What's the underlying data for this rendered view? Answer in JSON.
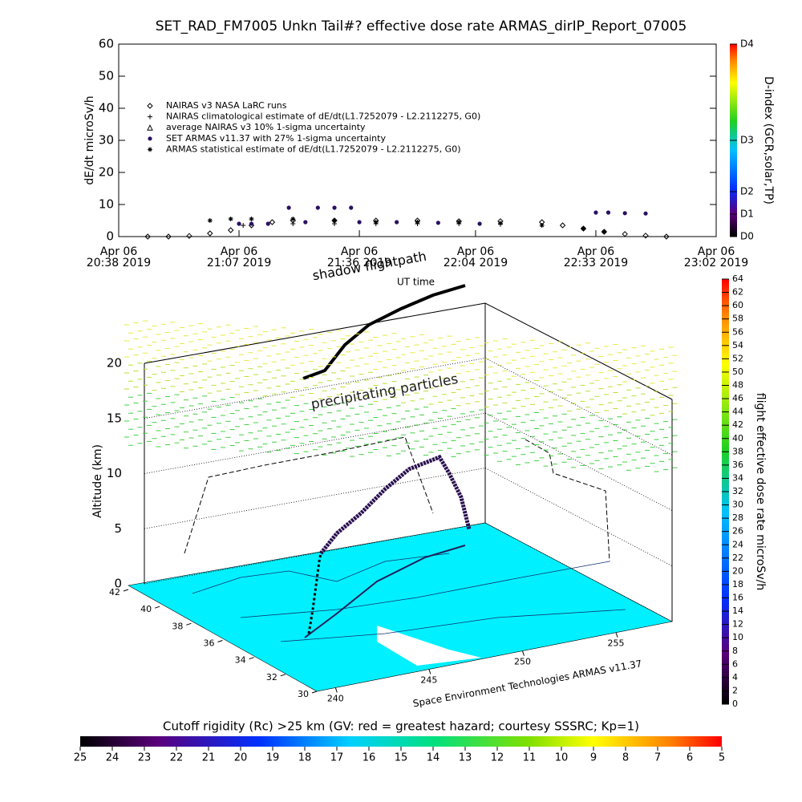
{
  "chart_data": [
    {
      "type": "line",
      "title": "SET_RAD_FM7005  Unkn Tail#? effective dose rate ARMAS_dirIP_Report_07005",
      "ylabel": "dE/dt microSv/h",
      "xlim": [
        "20:38",
        "23:02"
      ],
      "xticks": [
        {
          "value": "20:38",
          "label": [
            "Apr 06",
            "20:38 2019"
          ]
        },
        {
          "value": "21:07",
          "label": [
            "Apr 06",
            "21:07 2019"
          ]
        },
        {
          "value": "21:36",
          "label": [
            "Apr 06",
            "21:36 2019"
          ]
        },
        {
          "value": "22:04",
          "label": [
            "Apr 06",
            "22:04 2019"
          ]
        },
        {
          "value": "22:33",
          "label": [
            "Apr 06",
            "22:33 2019"
          ]
        },
        {
          "value": "23:02",
          "label": [
            "Apr 06",
            "23:02 2019"
          ]
        }
      ],
      "ylim": [
        0,
        60
      ],
      "yticks": [
        0,
        10,
        20,
        30,
        40,
        50,
        60
      ],
      "y2label": "D-index (GCR,solar,TP)",
      "y2lim": [
        0,
        60
      ],
      "y2ticks": [
        {
          "value": 0,
          "label": "D0"
        },
        {
          "value": 7,
          "label": "D1"
        },
        {
          "value": 14,
          "label": "D2"
        },
        {
          "value": 30,
          "label": "D3"
        },
        {
          "value": 60,
          "label": "D4"
        }
      ],
      "series": [
        {
          "name": "NAIRAS v3 NASA LaRC runs",
          "marker": "diamond",
          "color": "#000000",
          "x": [
            "20:45",
            "20:50",
            "20:55",
            "21:00",
            "21:05",
            "21:10",
            "21:15",
            "21:20",
            "21:30",
            "21:40",
            "21:50",
            "22:00",
            "22:10",
            "22:20",
            "22:25",
            "22:30",
            "22:35",
            "22:40",
            "22:45",
            "22:50"
          ],
          "values": [
            0,
            0,
            0.2,
            1,
            2,
            3.5,
            4.5,
            5,
            5,
            5,
            5,
            4.8,
            4.8,
            4.5,
            3.5,
            2.5,
            1.5,
            0.8,
            0.3,
            0
          ]
        },
        {
          "name": "NAIRAS climatological estimate of dE/dt(L1.7252079 - L2.2112275, G0)",
          "marker": "plus",
          "color": "#000000",
          "x": [
            "21:08",
            "21:20",
            "21:30",
            "21:40",
            "21:50",
            "22:00",
            "22:10"
          ],
          "values": [
            3.5,
            4,
            4,
            4,
            4,
            4,
            3.8
          ]
        },
        {
          "name": "average NAIRAS v3 10% 1-sigma uncertainty",
          "marker": "triangle",
          "color": "#000000",
          "x": [],
          "values": []
        },
        {
          "name": "SET ARMAS v11.37 with 27% 1-sigma uncertainty",
          "marker": "dot",
          "color": "#2a1060",
          "x": [
            "21:07",
            "21:10",
            "21:14",
            "21:19",
            "21:23",
            "21:26",
            "21:30",
            "21:34",
            "21:36",
            "21:45",
            "21:55",
            "22:05",
            "22:10",
            "22:33",
            "22:36",
            "22:40",
            "22:45"
          ],
          "values": [
            4,
            4,
            4,
            9,
            4.5,
            9,
            9,
            9,
            4.5,
            4.5,
            4.3,
            4,
            null,
            7.5,
            7.5,
            7.3,
            7.2
          ]
        },
        {
          "name": "ARMAS statistical estimate of dE/dt(L1.7252079 - L2.2112275, G0)",
          "marker": "star",
          "color": "#000000",
          "x": [
            "21:00",
            "21:05",
            "21:10",
            "21:20",
            "21:30",
            "21:40",
            "21:50",
            "22:00",
            "22:10",
            "22:20",
            "22:30",
            "22:35"
          ],
          "values": [
            5,
            5.5,
            5.5,
            5.5,
            5,
            4.5,
            4.5,
            4.5,
            4.2,
            3.5,
            2.5,
            1.5
          ]
        }
      ]
    },
    {
      "type": "surface3d",
      "annotations": [
        "shadow flightpath",
        "UT time",
        "precipitating particles"
      ],
      "zlabel": "Altitude (km)",
      "zlim": [
        0,
        20
      ],
      "zticks": [
        0,
        5,
        10,
        15,
        20
      ],
      "latlim": [
        42,
        30
      ],
      "latticks": [
        42,
        40,
        38,
        36,
        34,
        32,
        30
      ],
      "lonlim": [
        239,
        258
      ],
      "lonticks": [
        240,
        245,
        250,
        255
      ],
      "credit": "Space Environment Technologies ARMAS v11.37"
    },
    {
      "type": "colorbar",
      "label": "flight effective dose rate microSv/h",
      "lim": [
        0,
        64
      ],
      "ticks": [
        0,
        2,
        4,
        6,
        8,
        10,
        12,
        14,
        16,
        18,
        20,
        22,
        24,
        26,
        28,
        30,
        32,
        34,
        36,
        38,
        40,
        42,
        44,
        46,
        48,
        50,
        52,
        54,
        56,
        58,
        60,
        62,
        64
      ]
    },
    {
      "type": "colorbar",
      "title": "Cutoff rigidity (Rc) >25 km (GV: red = greatest hazard; courtesy SSSRC; Kp=1)",
      "lim": [
        25,
        5
      ],
      "ticks": [
        25,
        24,
        23,
        22,
        21,
        20,
        19,
        18,
        17,
        16,
        15,
        14,
        13,
        12,
        11,
        10,
        9,
        8,
        7,
        6,
        5
      ]
    }
  ]
}
